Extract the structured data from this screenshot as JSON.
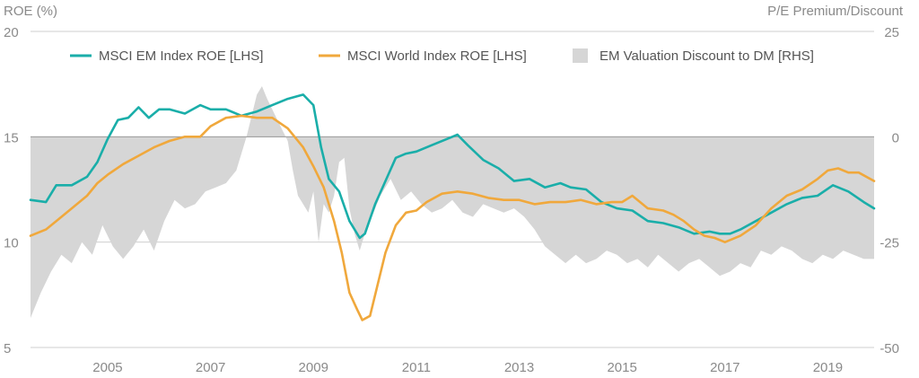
{
  "chart_data": {
    "type": "line",
    "left_axis": {
      "title": "ROE (%)",
      "range": [
        5,
        20
      ],
      "ticks": [
        5,
        10,
        15,
        20
      ]
    },
    "right_axis": {
      "title": "P/E Premium/Discount",
      "range": [
        -50,
        25
      ],
      "ticks": [
        -50,
        -25,
        0,
        25
      ]
    },
    "x_axis": {
      "range": [
        2003.5,
        2019.9
      ],
      "ticks": [
        2005,
        2007,
        2009,
        2011,
        2013,
        2015,
        2017,
        2019
      ]
    },
    "grid": "horizontal",
    "legend_position": "top",
    "series": [
      {
        "name": "MSCI EM Index ROE [LHS]",
        "axis": "left",
        "kind": "line",
        "color": "#1aaea9",
        "x": [
          2003.5,
          2003.8,
          2004.0,
          2004.3,
          2004.6,
          2004.8,
          2005.0,
          2005.2,
          2005.4,
          2005.6,
          2005.8,
          2006.0,
          2006.2,
          2006.5,
          2006.8,
          2007.0,
          2007.3,
          2007.6,
          2007.9,
          2008.2,
          2008.5,
          2008.8,
          2009.0,
          2009.15,
          2009.3,
          2009.5,
          2009.7,
          2009.9,
          2010.0,
          2010.2,
          2010.4,
          2010.6,
          2010.8,
          2011.0,
          2011.3,
          2011.6,
          2011.8,
          2012.0,
          2012.3,
          2012.6,
          2012.9,
          2013.2,
          2013.5,
          2013.8,
          2014.0,
          2014.3,
          2014.6,
          2014.9,
          2015.2,
          2015.5,
          2015.8,
          2016.1,
          2016.4,
          2016.7,
          2016.9,
          2017.1,
          2017.3,
          2017.6,
          2017.9,
          2018.2,
          2018.5,
          2018.8,
          2019.1,
          2019.4,
          2019.7,
          2019.9
        ],
        "y": [
          12.0,
          11.9,
          12.7,
          12.7,
          13.1,
          13.8,
          14.9,
          15.8,
          15.9,
          16.4,
          15.9,
          16.3,
          16.3,
          16.1,
          16.5,
          16.3,
          16.3,
          16.0,
          16.2,
          16.5,
          16.8,
          17.0,
          16.5,
          14.5,
          13.0,
          12.4,
          11.0,
          10.2,
          10.4,
          11.8,
          12.9,
          14.0,
          14.2,
          14.3,
          14.6,
          14.9,
          15.1,
          14.6,
          13.9,
          13.5,
          12.9,
          13.0,
          12.6,
          12.8,
          12.6,
          12.5,
          11.9,
          11.6,
          11.5,
          11.0,
          10.9,
          10.7,
          10.4,
          10.5,
          10.4,
          10.4,
          10.6,
          11.0,
          11.4,
          11.8,
          12.1,
          12.2,
          12.7,
          12.4,
          11.9,
          11.6
        ]
      },
      {
        "name": "MSCI World Index ROE [LHS]",
        "axis": "left",
        "kind": "line",
        "color": "#f0a83c",
        "x": [
          2003.5,
          2003.8,
          2004.0,
          2004.3,
          2004.6,
          2004.8,
          2005.0,
          2005.3,
          2005.6,
          2005.9,
          2006.2,
          2006.5,
          2006.8,
          2007.0,
          2007.3,
          2007.6,
          2007.9,
          2008.2,
          2008.5,
          2008.8,
          2009.0,
          2009.2,
          2009.4,
          2009.55,
          2009.7,
          2009.85,
          2009.95,
          2010.1,
          2010.25,
          2010.4,
          2010.6,
          2010.8,
          2011.0,
          2011.2,
          2011.5,
          2011.8,
          2012.1,
          2012.4,
          2012.7,
          2013.0,
          2013.3,
          2013.6,
          2013.9,
          2014.2,
          2014.5,
          2014.8,
          2015.0,
          2015.2,
          2015.5,
          2015.8,
          2016.0,
          2016.2,
          2016.4,
          2016.6,
          2016.8,
          2017.0,
          2017.3,
          2017.6,
          2017.9,
          2018.2,
          2018.5,
          2018.8,
          2019.0,
          2019.2,
          2019.4,
          2019.6,
          2019.9
        ],
        "y": [
          10.3,
          10.6,
          11.0,
          11.6,
          12.2,
          12.8,
          13.2,
          13.7,
          14.1,
          14.5,
          14.8,
          15.0,
          15.0,
          15.5,
          15.9,
          16.0,
          15.9,
          15.9,
          15.4,
          14.5,
          13.6,
          12.6,
          11.0,
          9.5,
          7.6,
          6.8,
          6.3,
          6.5,
          8.0,
          9.5,
          10.8,
          11.4,
          11.5,
          11.9,
          12.3,
          12.4,
          12.3,
          12.1,
          12.0,
          12.0,
          11.8,
          11.9,
          11.9,
          12.0,
          11.8,
          11.9,
          11.9,
          12.2,
          11.6,
          11.5,
          11.3,
          11.0,
          10.6,
          10.3,
          10.2,
          10.0,
          10.3,
          10.8,
          11.6,
          12.2,
          12.5,
          13.0,
          13.4,
          13.5,
          13.3,
          13.3,
          12.9
        ]
      },
      {
        "name": "EM Valuation Discount to DM [RHS]",
        "axis": "right",
        "kind": "area",
        "color": "#d6d6d6",
        "x": [
          2003.5,
          2003.7,
          2003.9,
          2004.1,
          2004.3,
          2004.5,
          2004.7,
          2004.9,
          2005.1,
          2005.3,
          2005.5,
          2005.7,
          2005.9,
          2006.1,
          2006.3,
          2006.5,
          2006.7,
          2006.9,
          2007.1,
          2007.3,
          2007.5,
          2007.7,
          2007.9,
          2008.0,
          2008.1,
          2008.3,
          2008.5,
          2008.6,
          2008.7,
          2008.8,
          2008.9,
          2009.0,
          2009.1,
          2009.2,
          2009.3,
          2009.4,
          2009.5,
          2009.6,
          2009.7,
          2009.8,
          2009.9,
          2010.0,
          2010.1,
          2010.3,
          2010.5,
          2010.7,
          2010.9,
          2011.1,
          2011.3,
          2011.5,
          2011.7,
          2011.9,
          2012.1,
          2012.3,
          2012.5,
          2012.7,
          2012.9,
          2013.1,
          2013.3,
          2013.5,
          2013.7,
          2013.9,
          2014.1,
          2014.3,
          2014.5,
          2014.7,
          2014.9,
          2015.1,
          2015.3,
          2015.5,
          2015.7,
          2015.9,
          2016.1,
          2016.3,
          2016.5,
          2016.7,
          2016.9,
          2017.1,
          2017.3,
          2017.5,
          2017.7,
          2017.9,
          2018.1,
          2018.3,
          2018.5,
          2018.7,
          2018.9,
          2019.1,
          2019.3,
          2019.5,
          2019.7,
          2019.9
        ],
        "y": [
          -43,
          -37,
          -32,
          -28,
          -30,
          -25,
          -28,
          -21,
          -26,
          -29,
          -26,
          -22,
          -27,
          -20,
          -15,
          -17,
          -16,
          -13,
          -12,
          -11,
          -8,
          0,
          10,
          12,
          9,
          4,
          -1,
          -8,
          -14,
          -16,
          -18,
          -13,
          -25,
          -16,
          -18,
          -14,
          -6,
          -5,
          -17,
          -23,
          -27,
          -23,
          -20,
          -14,
          -10,
          -15,
          -13,
          -16,
          -18,
          -17,
          -15,
          -18,
          -19,
          -16,
          -17,
          -18,
          -17,
          -19,
          -22,
          -26,
          -28,
          -30,
          -28,
          -30,
          -29,
          -27,
          -28,
          -30,
          -29,
          -31,
          -28,
          -30,
          -32,
          -30,
          -29,
          -31,
          -33,
          -32,
          -30,
          -31,
          -27,
          -28,
          -26,
          -27,
          -29,
          -30,
          -28,
          -29,
          -27,
          -28,
          -29,
          -29
        ]
      }
    ]
  }
}
